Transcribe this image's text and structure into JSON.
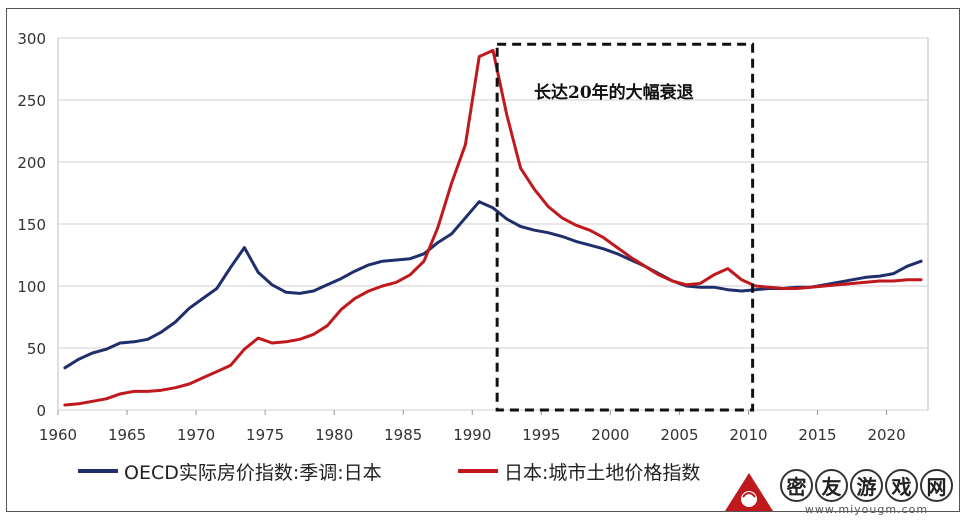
{
  "chart_data": {
    "type": "line",
    "xlim": [
      1960,
      2023
    ],
    "ylim": [
      0,
      300
    ],
    "x_ticks": [
      "1960",
      "1965",
      "1970",
      "1975",
      "1980",
      "1985",
      "1990",
      "1995",
      "2000",
      "2005",
      "2010",
      "2015",
      "2020"
    ],
    "y_ticks": [
      "0",
      "50",
      "100",
      "150",
      "200",
      "250",
      "300"
    ],
    "grid": "horizontal",
    "legend_position": "bottom",
    "series": [
      {
        "name": "OECD实际房价指数:季调:日本",
        "color": "#1f2f6b",
        "points": [
          [
            1960.5,
            34
          ],
          [
            1961.5,
            41
          ],
          [
            1962.5,
            46
          ],
          [
            1963.5,
            49
          ],
          [
            1964.5,
            54
          ],
          [
            1965.5,
            55
          ],
          [
            1966.5,
            57
          ],
          [
            1967.5,
            63
          ],
          [
            1968.5,
            71
          ],
          [
            1969.5,
            82
          ],
          [
            1970.5,
            90
          ],
          [
            1971.5,
            98
          ],
          [
            1972.5,
            115
          ],
          [
            1973.5,
            131
          ],
          [
            1974.5,
            111
          ],
          [
            1975.5,
            101
          ],
          [
            1976.5,
            95
          ],
          [
            1977.5,
            94
          ],
          [
            1978.5,
            96
          ],
          [
            1979.5,
            101
          ],
          [
            1980.5,
            106
          ],
          [
            1981.5,
            112
          ],
          [
            1982.5,
            117
          ],
          [
            1983.5,
            120
          ],
          [
            1984.5,
            121
          ],
          [
            1985.5,
            122
          ],
          [
            1986.5,
            126
          ],
          [
            1987.5,
            135
          ],
          [
            1988.5,
            142
          ],
          [
            1989.5,
            155
          ],
          [
            1990.5,
            168
          ],
          [
            1991.5,
            163
          ],
          [
            1992.5,
            154
          ],
          [
            1993.5,
            148
          ],
          [
            1994.5,
            145
          ],
          [
            1995.5,
            143
          ],
          [
            1996.5,
            140
          ],
          [
            1997.5,
            136
          ],
          [
            1998.5,
            133
          ],
          [
            1999.5,
            130
          ],
          [
            2000.5,
            126
          ],
          [
            2001.5,
            121
          ],
          [
            2002.5,
            116
          ],
          [
            2003.5,
            110
          ],
          [
            2004.5,
            104
          ],
          [
            2005.5,
            100
          ],
          [
            2006.5,
            99
          ],
          [
            2007.5,
            99
          ],
          [
            2008.5,
            97
          ],
          [
            2009.5,
            96
          ],
          [
            2010.5,
            97
          ],
          [
            2011.5,
            98
          ],
          [
            2012.5,
            98
          ],
          [
            2013.5,
            99
          ],
          [
            2014.5,
            99
          ],
          [
            2015.5,
            101
          ],
          [
            2016.5,
            103
          ],
          [
            2017.5,
            105
          ],
          [
            2018.5,
            107
          ],
          [
            2019.5,
            108
          ],
          [
            2020.5,
            110
          ],
          [
            2021.5,
            116
          ],
          [
            2022.5,
            120
          ]
        ]
      },
      {
        "name": "日本:城市土地价格指数",
        "color": "#c0191d",
        "points": [
          [
            1960.5,
            4
          ],
          [
            1961.5,
            5
          ],
          [
            1962.5,
            7
          ],
          [
            1963.5,
            9
          ],
          [
            1964.5,
            13
          ],
          [
            1965.5,
            15
          ],
          [
            1966.5,
            15
          ],
          [
            1967.5,
            16
          ],
          [
            1968.5,
            18
          ],
          [
            1969.5,
            21
          ],
          [
            1970.5,
            26
          ],
          [
            1971.5,
            31
          ],
          [
            1972.5,
            36
          ],
          [
            1973.5,
            49
          ],
          [
            1974.5,
            58
          ],
          [
            1975.5,
            54
          ],
          [
            1976.5,
            55
          ],
          [
            1977.5,
            57
          ],
          [
            1978.5,
            61
          ],
          [
            1979.5,
            68
          ],
          [
            1980.5,
            81
          ],
          [
            1981.5,
            90
          ],
          [
            1982.5,
            96
          ],
          [
            1983.5,
            100
          ],
          [
            1984.5,
            103
          ],
          [
            1985.5,
            109
          ],
          [
            1986.5,
            120
          ],
          [
            1987.5,
            147
          ],
          [
            1988.5,
            183
          ],
          [
            1989.5,
            214
          ],
          [
            1990.5,
            285
          ],
          [
            1991.5,
            290
          ],
          [
            1992.5,
            238
          ],
          [
            1993.5,
            195
          ],
          [
            1994.5,
            178
          ],
          [
            1995.5,
            164
          ],
          [
            1996.5,
            155
          ],
          [
            1997.5,
            149
          ],
          [
            1998.5,
            145
          ],
          [
            1999.5,
            139
          ],
          [
            2000.5,
            131
          ],
          [
            2001.5,
            123
          ],
          [
            2002.5,
            116
          ],
          [
            2003.5,
            109
          ],
          [
            2004.5,
            104
          ],
          [
            2005.5,
            101
          ],
          [
            2006.5,
            102
          ],
          [
            2007.5,
            109
          ],
          [
            2008.5,
            114
          ],
          [
            2009.5,
            105
          ],
          [
            2010.5,
            100
          ],
          [
            2011.5,
            99
          ],
          [
            2012.5,
            98
          ],
          [
            2013.5,
            98
          ],
          [
            2014.5,
            99
          ],
          [
            2015.5,
            100
          ],
          [
            2016.5,
            101
          ],
          [
            2017.5,
            102
          ],
          [
            2018.5,
            103
          ],
          [
            2019.5,
            104
          ],
          [
            2020.5,
            104
          ],
          [
            2021.5,
            105
          ],
          [
            2022.5,
            105
          ]
        ]
      }
    ],
    "annotation": {
      "text": "长达20年的大幅衰退",
      "x_range": [
        1991.8,
        2010.3
      ],
      "y_range": [
        0,
        295
      ],
      "style": "dashed-box"
    }
  },
  "watermark": {
    "chars": [
      "密",
      "友",
      "游",
      "戏",
      "网"
    ],
    "url": "www.miyougm.com"
  }
}
